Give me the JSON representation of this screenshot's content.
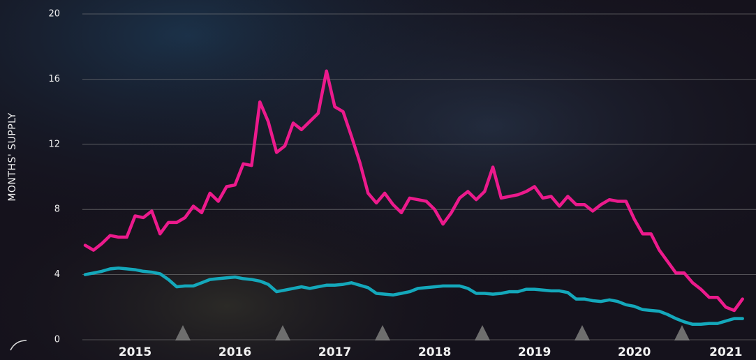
{
  "chart_data": {
    "type": "line",
    "y_label": "MONTHS' SUPPLY",
    "categories": [
      null,
      null,
      null,
      null,
      null,
      null,
      "2015",
      null,
      null,
      null,
      null,
      null,
      null,
      null,
      null,
      null,
      null,
      null,
      "2016",
      null,
      null,
      null,
      null,
      null,
      null,
      null,
      null,
      null,
      null,
      null,
      "2017",
      null,
      null,
      null,
      null,
      null,
      null,
      null,
      null,
      null,
      null,
      null,
      "2018",
      null,
      null,
      null,
      null,
      null,
      null,
      null,
      null,
      null,
      null,
      null,
      "2019",
      null,
      null,
      null,
      null,
      null,
      null,
      null,
      null,
      null,
      null,
      null,
      "2020",
      null,
      null,
      null,
      null,
      null,
      null,
      null,
      null,
      null,
      null,
      "2021",
      null,
      null
    ],
    "series": [
      {
        "color": "#ec1a8c",
        "values": [
          5.8,
          5.5,
          5.9,
          6.4,
          6.3,
          6.3,
          7.6,
          7.5,
          7.9,
          6.5,
          7.2,
          7.2,
          7.5,
          8.2,
          7.8,
          9.0,
          8.5,
          9.4,
          9.5,
          10.8,
          10.7,
          14.6,
          13.4,
          11.5,
          11.9,
          13.3,
          12.9,
          13.4,
          13.9,
          16.5,
          14.3,
          14.0,
          12.5,
          10.9,
          9.0,
          8.4,
          9.0,
          8.3,
          7.8,
          8.7,
          8.6,
          8.5,
          8.0,
          7.1,
          7.8,
          8.7,
          9.1,
          8.6,
          9.1,
          10.6,
          8.7,
          8.8,
          8.9,
          9.1,
          9.4,
          8.7,
          8.8,
          8.2,
          8.8,
          8.3,
          8.3,
          7.9,
          8.3,
          8.6,
          8.5,
          8.5,
          7.4,
          6.5,
          6.5,
          5.5,
          4.8,
          4.1,
          4.1,
          3.5,
          3.1,
          2.6,
          2.6,
          2.0,
          1.8,
          2.5
        ]
      },
      {
        "color": "#14a8bb",
        "values": [
          4.0,
          4.1,
          4.2,
          4.35,
          4.4,
          4.35,
          4.3,
          4.2,
          4.15,
          4.05,
          3.7,
          3.25,
          3.3,
          3.3,
          3.5,
          3.7,
          3.75,
          3.8,
          3.85,
          3.75,
          3.7,
          3.6,
          3.4,
          2.95,
          3.05,
          3.15,
          3.25,
          3.15,
          3.25,
          3.35,
          3.35,
          3.4,
          3.5,
          3.35,
          3.2,
          2.85,
          2.8,
          2.75,
          2.85,
          2.95,
          3.15,
          3.2,
          3.25,
          3.3,
          3.3,
          3.3,
          3.15,
          2.85,
          2.85,
          2.8,
          2.85,
          2.95,
          2.95,
          3.1,
          3.1,
          3.05,
          3.0,
          3.0,
          2.9,
          2.5,
          2.5,
          2.4,
          2.35,
          2.45,
          2.35,
          2.15,
          2.05,
          1.85,
          1.8,
          1.75,
          1.55,
          1.3,
          1.1,
          0.95,
          0.95,
          1.0,
          1.0,
          1.15,
          1.3,
          1.3
        ]
      }
    ],
    "ylim": [
      0,
      20
    ],
    "yticks": [
      0,
      4,
      8,
      12,
      16,
      20
    ],
    "grid": true
  }
}
